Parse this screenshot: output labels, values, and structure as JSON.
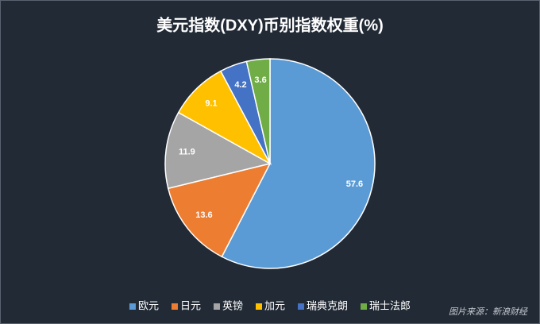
{
  "chart_data": {
    "type": "pie",
    "title": "美元指数(DXY)币别指数权重(%)",
    "categories": [
      "欧元",
      "日元",
      "英镑",
      "加元",
      "瑞典克朗",
      "瑞士法郎"
    ],
    "values": [
      57.6,
      13.6,
      11.9,
      9.1,
      4.2,
      3.6
    ],
    "colors": [
      "#5b9bd5",
      "#ed7d31",
      "#a5a5a5",
      "#ffc000",
      "#4472c4",
      "#70ad47"
    ],
    "legend": "bottom",
    "source": "图片来源：新浪财经"
  }
}
